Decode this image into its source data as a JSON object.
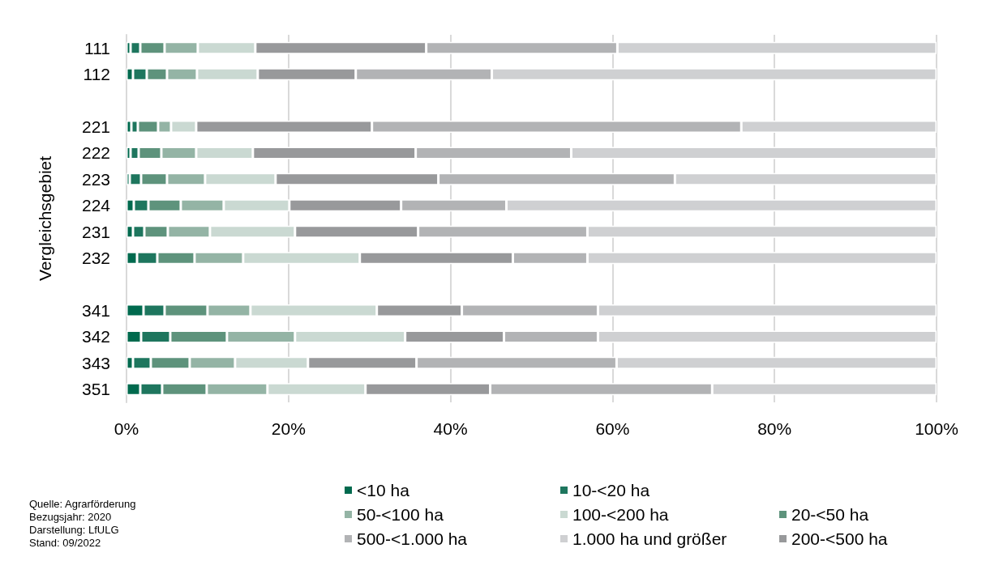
{
  "chart_data": {
    "type": "bar",
    "orientation": "horizontal",
    "stacked": true,
    "ylabel": "Vergleichsgebiet",
    "categories": [
      "111",
      "112",
      null,
      "221",
      "222",
      "223",
      "224",
      "231",
      "232",
      null,
      "341",
      "342",
      "343",
      "351"
    ],
    "series": [
      {
        "name": "<10 ha",
        "color": "#006a4e",
        "values": [
          0.5,
          0.8,
          null,
          0.6,
          0.5,
          0.4,
          0.9,
          0.8,
          1.3,
          null,
          2.1,
          1.8,
          0.8,
          1.7
        ]
      },
      {
        "name": "10-<20 ha",
        "color": "#1e765e",
        "values": [
          1.2,
          1.7,
          null,
          0.8,
          1.0,
          1.4,
          1.8,
          1.4,
          2.5,
          null,
          2.6,
          3.6,
          2.2,
          2.7
        ]
      },
      {
        "name": "20-<50 ha",
        "color": "#5e937c",
        "values": [
          3.0,
          2.5,
          null,
          2.5,
          2.8,
          3.2,
          4.0,
          2.9,
          4.6,
          null,
          5.3,
          7.0,
          4.8,
          5.5
        ]
      },
      {
        "name": "50-<100 ha",
        "color": "#94b4a5",
        "values": [
          4.1,
          3.7,
          null,
          1.6,
          4.3,
          4.7,
          5.3,
          5.2,
          6.0,
          null,
          5.3,
          8.4,
          5.6,
          7.5
        ]
      },
      {
        "name": "100-<200 ha",
        "color": "#cad9d2",
        "values": [
          7.1,
          7.5,
          null,
          3.1,
          7.0,
          8.7,
          8.1,
          10.5,
          14.4,
          null,
          15.6,
          13.6,
          9.0,
          12.1
        ]
      },
      {
        "name": "200-<500 ha",
        "color": "#98999b",
        "values": [
          21.1,
          12.1,
          null,
          21.7,
          20.1,
          20.1,
          13.8,
          15.2,
          18.9,
          null,
          10.5,
          12.2,
          13.4,
          15.4
        ]
      },
      {
        "name": "500-<1.000 ha",
        "color": "#b2b3b5",
        "values": [
          23.6,
          16.8,
          null,
          45.6,
          19.2,
          29.2,
          13.0,
          20.9,
          9.2,
          null,
          16.8,
          11.6,
          24.7,
          27.4
        ]
      },
      {
        "name": "1.000 ha und größer",
        "color": "#cfd0d2",
        "values": [
          39.4,
          54.9,
          null,
          24.1,
          45.1,
          32.3,
          53.1,
          43.1,
          43.1,
          null,
          41.8,
          41.8,
          39.5,
          27.7
        ]
      }
    ],
    "xlim": [
      0,
      100
    ],
    "xticks": [
      {
        "value": 0,
        "label": "0%"
      },
      {
        "value": 20,
        "label": "20%"
      },
      {
        "value": 40,
        "label": "40%"
      },
      {
        "value": 60,
        "label": "60%"
      },
      {
        "value": 80,
        "label": "80%"
      },
      {
        "value": 100,
        "label": "100%"
      }
    ],
    "grid": "x",
    "legend": "bottom",
    "annotations": [
      "Quelle: Agrarförderung",
      "Bezugsjahr: 2020",
      "Darstellung: LfULG",
      "Stand: 09/2022"
    ]
  }
}
